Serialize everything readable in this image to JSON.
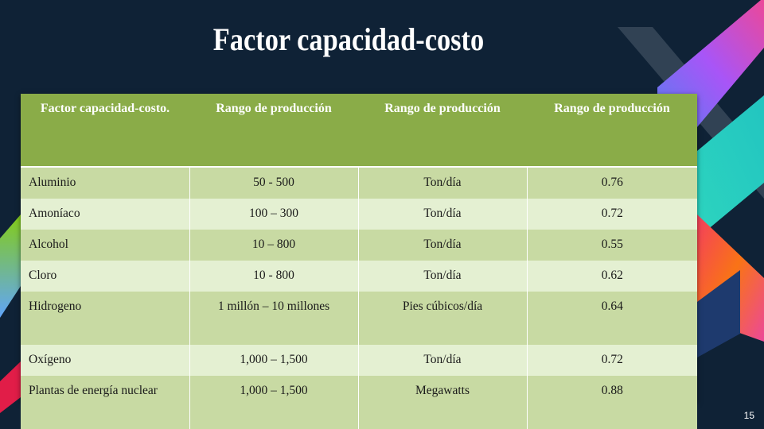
{
  "slide": {
    "title": "Factor capacidad-costo",
    "page_number": "15"
  },
  "table": {
    "headers": [
      "Factor capacidad-costo.",
      "Rango de producción",
      "Rango de producción",
      "Rango de producción"
    ],
    "rows": [
      [
        "Aluminio",
        "50 - 500",
        "Ton/día",
        "0.76"
      ],
      [
        "Amoníaco",
        "100 – 300",
        "Ton/día",
        "0.72"
      ],
      [
        "Alcohol",
        "10 – 800",
        "Ton/día",
        "0.55"
      ],
      [
        "Cloro",
        "10 - 800",
        "Ton/día",
        "0.62"
      ],
      [
        "Hidrogeno",
        "1 millón – 10 millones",
        "Pies cúbicos/día",
        "0.64"
      ],
      [
        "Oxígeno",
        "1,000 – 1,500",
        "Ton/día",
        "0.72"
      ],
      [
        "Plantas de energía nuclear",
        "1,000 – 1,500",
        "Megawatts",
        "0.88"
      ]
    ]
  },
  "colors": {
    "background": "#0f2236",
    "header": "#8aac48",
    "row_dark": "#c8daa3",
    "row_light": "#e4f0d2"
  }
}
